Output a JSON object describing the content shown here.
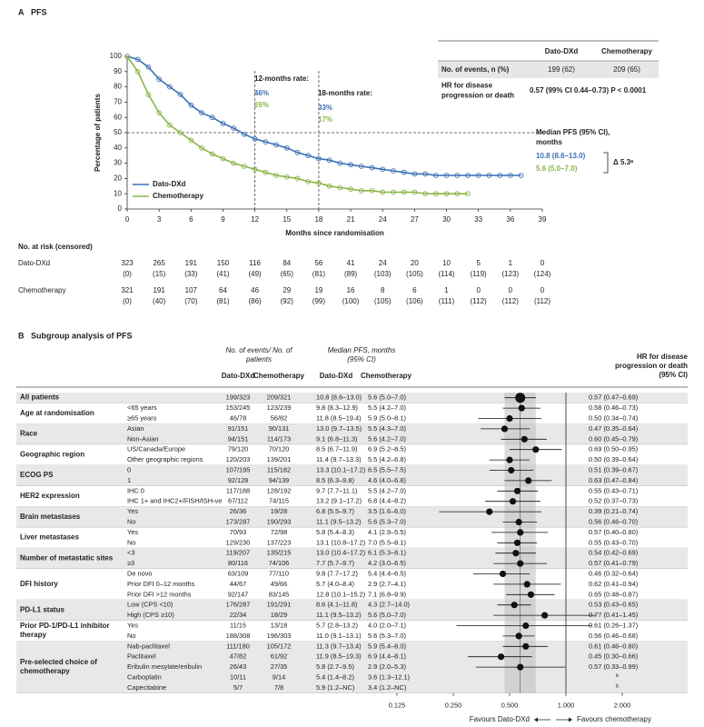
{
  "chart_data": [
    {
      "type": "line",
      "panel": "A",
      "title": "PFS",
      "x_label": "Months since randomisation",
      "y_label": "Percentage of patients",
      "x": [
        0,
        1,
        2,
        3,
        4,
        5,
        6,
        7,
        8,
        9,
        10,
        11,
        12,
        13,
        14,
        15,
        16,
        17,
        18,
        19,
        20,
        21,
        22,
        23,
        24,
        25,
        26,
        27,
        28,
        29,
        30,
        31,
        32,
        33,
        34,
        35,
        36,
        37
      ],
      "xlim": [
        0,
        39
      ],
      "xticks": [
        0,
        3,
        6,
        9,
        12,
        15,
        18,
        21,
        24,
        27,
        30,
        33,
        36,
        39
      ],
      "ylim": [
        0,
        100
      ],
      "yticks": [
        0,
        10,
        20,
        30,
        40,
        50,
        60,
        70,
        80,
        90,
        100
      ],
      "grid": false,
      "legend": "lower-left",
      "reference_lines": {
        "x": [
          12,
          18
        ],
        "y": [
          50
        ]
      },
      "series": [
        {
          "name": "Dato-DXd",
          "color": "#3b6fb6",
          "values": [
            100,
            98,
            93,
            85,
            80,
            75,
            68,
            63,
            60,
            56,
            53,
            49,
            46,
            44,
            42,
            40,
            37,
            35,
            33,
            32,
            30,
            29,
            28,
            27,
            26,
            25,
            24,
            23,
            23,
            22,
            22,
            22,
            22,
            22,
            22,
            22,
            22,
            22
          ]
        },
        {
          "name": "Chemotherapy",
          "color": "#8ab547",
          "values": [
            100,
            90,
            75,
            63,
            55,
            50,
            45,
            40,
            36,
            33,
            30,
            28,
            26,
            24,
            22,
            21,
            20,
            18,
            17,
            15,
            14,
            13,
            12,
            12,
            11,
            11,
            11,
            11,
            10,
            10,
            10,
            10,
            10,
            null,
            null,
            null,
            null,
            null
          ]
        }
      ],
      "annotations": {
        "rate12_title": "12-months rate:",
        "rate12_arm1": "46%",
        "rate12_arm2": "26%",
        "rate18_title": "18-months rate:",
        "rate18_arm1": "33%",
        "rate18_arm2": "17%",
        "median_title": "Median PFS (95% CI), months",
        "median_arm1": "10.8 (8.6–13.0)",
        "median_arm2": "5.6 (5.0–7.0)",
        "delta": "Δ 5.3ᵃ"
      },
      "summary_table": {
        "headers": [
          "Dato-DXd",
          "Chemotherapy"
        ],
        "rows": [
          [
            "No. of events, n (%)",
            "199 (62)",
            "209 (65)"
          ],
          [
            "HR for disease progression or death",
            "0.57 (99% CI 0.44–0.73) P < 0.0001"
          ]
        ]
      },
      "at_risk": {
        "title": "No. at risk (censored)",
        "rows": [
          {
            "name": "Dato-DXd",
            "counts": [
              323,
              265,
              191,
              150,
              116,
              84,
              56,
              41,
              24,
              20,
              10,
              5,
              1,
              0
            ],
            "censored": [
              "(0)",
              "(15)",
              "(33)",
              "(41)",
              "(49)",
              "(65)",
              "(81)",
              "(89)",
              "(103)",
              "(105)",
              "(114)",
              "(119)",
              "(123)",
              "(124)"
            ]
          },
          {
            "name": "Chemotherapy",
            "counts": [
              321,
              191,
              107,
              64,
              46,
              29,
              19,
              16,
              8,
              6,
              1,
              0,
              0,
              0
            ],
            "censored": [
              "(0)",
              "(40)",
              "(70)",
              "(81)",
              "(86)",
              "(92)",
              "(99)",
              "(100)",
              "(105)",
              "(106)",
              "(111)",
              "(112)",
              "(112)",
              "(112)"
            ]
          }
        ]
      }
    },
    {
      "type": "forest",
      "panel": "B",
      "title": "Subgroup analysis of PFS",
      "headers": {
        "events": "No. of events/ No. of patients",
        "median": "Median PFS, months (95% CI)",
        "arm1": "Dato-DXd",
        "arm2": "Chemotherapy",
        "hr": "HR for disease progression or death (95% CI)"
      },
      "xscale": "log",
      "xlim": [
        0.125,
        2
      ],
      "xticks": [
        0.125,
        {
          "value": 0.25,
          "label": "0.250"
        },
        {
          "value": 0.5,
          "label": "0.500"
        },
        {
          "value": 1,
          "label": "1.000"
        },
        {
          "value": 2,
          "label": "2.000"
        }
      ],
      "reference_line": 1,
      "point_color": "#111111",
      "footer": {
        "left": "Favours Dato-DXd",
        "right": "Favours chemotherapy"
      },
      "groups": [
        {
          "name": "All patients",
          "rows": [
            {
              "events": [
                "199/323",
                "209/321"
              ],
              "median": [
                "10.8 (8.6–13.0)",
                "5.6 (5.0–7.0)"
              ],
              "hr": 0.57,
              "lo": 0.47,
              "hi": 0.69,
              "value_label": "0.57 (0.47–0.69)"
            }
          ]
        },
        {
          "name": "Age at randomisation",
          "rows": [
            {
              "label": "<65 years",
              "events": [
                "153/245",
                "123/239"
              ],
              "median": [
                "9.8 (8.3–12.9)",
                "5.5 (4.2–7.0)"
              ],
              "hr": 0.58,
              "lo": 0.46,
              "hi": 0.73,
              "value_label": "0.58 (0.46–0.73)"
            },
            {
              "label": "≥65 years",
              "events": [
                "46/78",
                "56/82"
              ],
              "median": [
                "11.8 (8.5–19.4)",
                "5.9 (5.0–8.1)"
              ],
              "hr": 0.5,
              "lo": 0.34,
              "hi": 0.74,
              "value_label": "0.50 (0.34–0.74)"
            }
          ]
        },
        {
          "name": "Race",
          "rows": [
            {
              "label": "Asian",
              "events": [
                "91/151",
                "90/131"
              ],
              "median": [
                "13.0 (9.7–13.5)",
                "5.5 (4.3–7.0)"
              ],
              "hr": 0.47,
              "lo": 0.35,
              "hi": 0.64,
              "value_label": "0.47 (0.35–0.64)"
            },
            {
              "label": "Non-Asian",
              "events": [
                "94/151",
                "114/173"
              ],
              "median": [
                "9.1 (6.8–11.3)",
                "5.6 (4.2–7.0)"
              ],
              "hr": 0.6,
              "lo": 0.45,
              "hi": 0.79,
              "value_label": "0.60 (0.45–0.79)"
            }
          ]
        },
        {
          "name": "Geographic region",
          "rows": [
            {
              "label": "US/Canada/Europe",
              "events": [
                "79/120",
                "70/120"
              ],
              "median": [
                "8.5 (6.7–11.9)",
                "6.9 (5.2–8.5)"
              ],
              "hr": 0.69,
              "lo": 0.5,
              "hi": 0.95,
              "value_label": "0.69 (0.50–0.95)"
            },
            {
              "label": "Other geographic regions",
              "events": [
                "120/203",
                "139/201"
              ],
              "median": [
                "11.4 (9.7–13.3)",
                "5.5 (4.2–6.8)"
              ],
              "hr": 0.5,
              "lo": 0.39,
              "hi": 0.64,
              "value_label": "0.50 (0.39–0.64)"
            }
          ]
        },
        {
          "name": "ECOG PS",
          "rows": [
            {
              "label": "0",
              "events": [
                "107/195",
                "115/182"
              ],
              "median": [
                "13.3 (10.1–17.2)",
                "6.5 (5.5–7.5)"
              ],
              "hr": 0.51,
              "lo": 0.39,
              "hi": 0.67,
              "value_label": "0.51 (0.39–0.67)"
            },
            {
              "label": "1",
              "events": [
                "92/128",
                "94/139"
              ],
              "median": [
                "8.5 (6.3–9.8)",
                "4.6 (4.0–6.8)"
              ],
              "hr": 0.63,
              "lo": 0.47,
              "hi": 0.84,
              "value_label": "0.63 (0.47–0.84)"
            }
          ]
        },
        {
          "name": "HER2 expression",
          "rows": [
            {
              "label": "IHC 0",
              "events": [
                "117/188",
                "128/192"
              ],
              "median": [
                "9.7 (7.7–11.1)",
                "5.5 (4.2–7.0)"
              ],
              "hr": 0.55,
              "lo": 0.43,
              "hi": 0.71,
              "value_label": "0.55 (0.43–0.71)"
            },
            {
              "label": "IHC 1+ and IHC2+/FISH/ISH-ve",
              "events": [
                "67/112",
                "74/115"
              ],
              "median": [
                "13.2 (9.1–17.2)",
                "6.8 (4.4–8.2)"
              ],
              "hr": 0.52,
              "lo": 0.37,
              "hi": 0.73,
              "value_label": "0.52 (0.37–0.73)"
            }
          ]
        },
        {
          "name": "Brain metastases",
          "rows": [
            {
              "label": "Yes",
              "events": [
                "26/36",
                "19/28"
              ],
              "median": [
                "6.8 (5.5–9.7)",
                "3.5 (1.6–6.0)"
              ],
              "hr": 0.39,
              "lo": 0.21,
              "hi": 0.74,
              "value_label": "0.39 (0.21–0.74)"
            },
            {
              "label": "No",
              "events": [
                "173/287",
                "190/293"
              ],
              "median": [
                "11.1 (9.5–13.2)",
                "5.6 (5.3–7.0)"
              ],
              "hr": 0.56,
              "lo": 0.46,
              "hi": 0.7,
              "value_label": "0.56 (0.46–0.70)"
            }
          ]
        },
        {
          "name": "Liver metastases",
          "rows": [
            {
              "label": "Yes",
              "events": [
                "70/93",
                "72/98"
              ],
              "median": [
                "5.8 (5.4–8.3)",
                "4.1 (2.9–5.5)"
              ],
              "hr": 0.57,
              "lo": 0.4,
              "hi": 0.8,
              "value_label": "0.57 (0.40–0.80)"
            },
            {
              "label": "No",
              "events": [
                "129/230",
                "137/223"
              ],
              "median": [
                "13.1 (10.8–17.2)",
                "7.0 (5.5–8.1)"
              ],
              "hr": 0.55,
              "lo": 0.43,
              "hi": 0.7,
              "value_label": "0.55 (0.43–0.70)"
            }
          ]
        },
        {
          "name": "Number of metastatic sites",
          "rows": [
            {
              "label": "<3",
              "events": [
                "119/207",
                "135/215"
              ],
              "median": [
                "13.0 (10.4–17.2)",
                "6.1 (5.3–8.1)"
              ],
              "hr": 0.54,
              "lo": 0.42,
              "hi": 0.69,
              "value_label": "0.54 (0.42–0.69)"
            },
            {
              "label": "≥3",
              "events": [
                "80/116",
                "74/106"
              ],
              "median": [
                "7.7 (5.7–9.7)",
                "4.2 (3.0–6.5)"
              ],
              "hr": 0.57,
              "lo": 0.41,
              "hi": 0.79,
              "value_label": "0.57 (0.41–0.79)"
            }
          ]
        },
        {
          "name": "DFI history",
          "rows": [
            {
              "label": "De novo",
              "events": [
                "63/109",
                "77/110"
              ],
              "median": [
                "9.8 (7.7–17.2)",
                "5.4 (4.4–6.5)"
              ],
              "hr": 0.46,
              "lo": 0.32,
              "hi": 0.64,
              "value_label": "0.46 (0.32–0.64)"
            },
            {
              "label": "Prior DFI 0–12 months",
              "events": [
                "44/67",
                "49/66"
              ],
              "median": [
                "5.7 (4.0–8.4)",
                "2.9 (2.7–4.1)"
              ],
              "hr": 0.62,
              "lo": 0.41,
              "hi": 0.94,
              "value_label": "0.62 (0.41–0.94)"
            },
            {
              "label": "Prior DFI >12 months",
              "events": [
                "92/147",
                "83/145"
              ],
              "median": [
                "12.8 (10.1–15.2)",
                "7.1 (6.8–9.9)"
              ],
              "hr": 0.65,
              "lo": 0.48,
              "hi": 0.87,
              "value_label": "0.65 (0.48–0.87)"
            }
          ]
        },
        {
          "name": "PD-L1 status",
          "rows": [
            {
              "label": "Low (CPS <10)",
              "events": [
                "176/287",
                "191/291"
              ],
              "median": [
                "8.6 (4.1–11.8)",
                "4.3 (2.7–14.0)"
              ],
              "hr": 0.53,
              "lo": 0.43,
              "hi": 0.65,
              "value_label": "0.53 (0.43–0.65)"
            },
            {
              "label": "High (CPS ≥10)",
              "events": [
                "22/34",
                "18/29"
              ],
              "median": [
                "11.1 (9.5–13.2)",
                "5.6 (5.0–7.0)"
              ],
              "hr": 0.77,
              "lo": 0.41,
              "hi": 1.45,
              "value_label": "0.77 (0.41–1.45)"
            }
          ]
        },
        {
          "name": "Prior PD-1/PD-L1 inhibitor therapy",
          "rows": [
            {
              "label": "Yes",
              "events": [
                "11/15",
                "13/18"
              ],
              "median": [
                "5.7 (2.8–13.2)",
                "4.0 (2.0–7.1)"
              ],
              "hr": 0.61,
              "lo": 0.26,
              "hi": 1.37,
              "value_label": "0.61 (0.26–1.37)"
            },
            {
              "label": "No",
              "events": [
                "188/308",
                "196/303"
              ],
              "median": [
                "11.0 (9.1–13.1)",
                "5.6 (5.3–7.0)"
              ],
              "hr": 0.56,
              "lo": 0.46,
              "hi": 0.68,
              "value_label": "0.56 (0.46–0.68)"
            }
          ]
        },
        {
          "name": "Pre-selected choice of chemotherapy",
          "rows": [
            {
              "label": "Nab-paclitaxel",
              "events": [
                "111/180",
                "105/172"
              ],
              "median": [
                "11.3 (9.7–13.4)",
                "5.9 (5.4–8.0)"
              ],
              "hr": 0.61,
              "lo": 0.46,
              "hi": 0.8,
              "value_label": "0.61 (0.46–0.80)"
            },
            {
              "label": "Paclitaxel",
              "events": [
                "47/82",
                "61/92"
              ],
              "median": [
                "11.9 (8.5–19.3)",
                "6.9 (4.4–8.1)"
              ],
              "hr": 0.45,
              "lo": 0.3,
              "hi": 0.66,
              "value_label": "0.45 (0.30–0.66)"
            },
            {
              "label": "Eribulin mesylate/eribulin",
              "events": [
                "26/43",
                "27/35"
              ],
              "median": [
                "5.8 (2.7–9.5)",
                "2.9 (2.0–5.3)"
              ],
              "hr": 0.57,
              "lo": 0.33,
              "hi": 0.99,
              "value_label": "0.57 (0.33–0.99)"
            },
            {
              "label": "Carboplatin",
              "events": [
                "10/11",
                "9/14"
              ],
              "median": [
                "5.4 (1.4–8.2)",
                "3.6 (1.3–12.1)"
              ],
              "value_label": "b"
            },
            {
              "label": "Capecitabine",
              "events": [
                "5/7",
                "7/8"
              ],
              "median": [
                "5.9 (1.2–NC)",
                "3.4 (1.2–NC)"
              ],
              "value_label": "b"
            }
          ]
        }
      ]
    }
  ]
}
